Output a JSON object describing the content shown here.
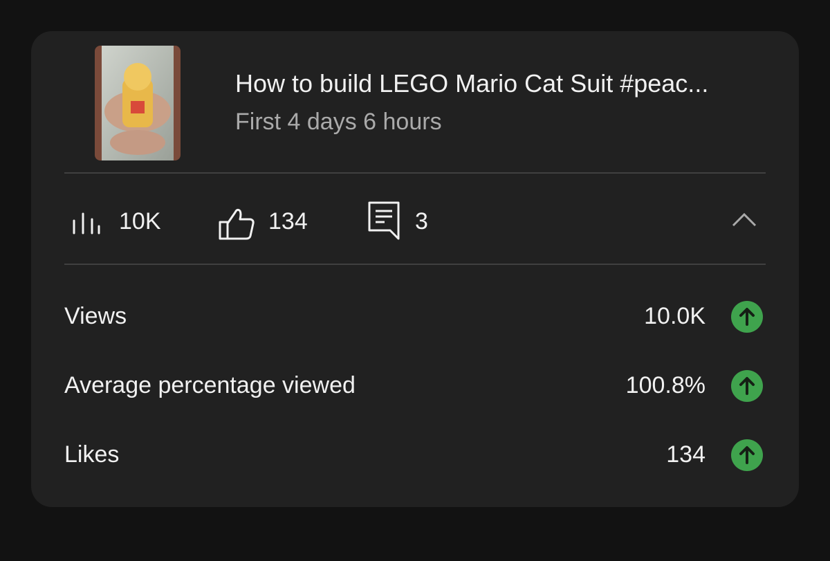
{
  "video": {
    "title": "How to build LEGO Mario Cat Suit #peac...",
    "period": "First 4 days 6 hours"
  },
  "summary": {
    "views": "10K",
    "likes": 134,
    "comments": 3
  },
  "metrics": [
    {
      "label": "Views",
      "value": "10.0K"
    },
    {
      "label": "Average percentage viewed",
      "value": "100.8%"
    },
    {
      "label": "Likes",
      "value": 134
    }
  ]
}
